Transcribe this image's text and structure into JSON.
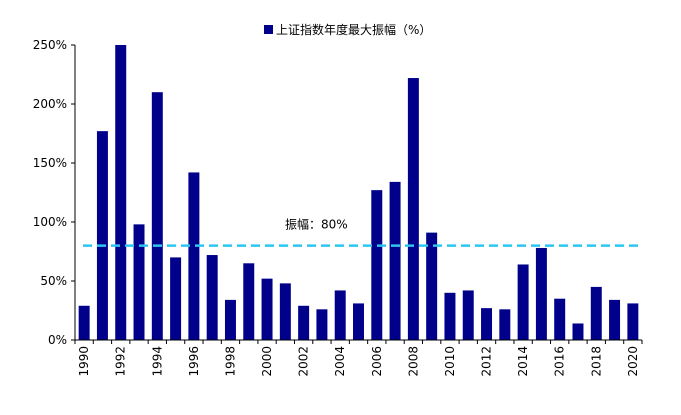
{
  "chart_data": {
    "type": "bar",
    "title": "上证指数年度最大振幅（%）",
    "legend": {
      "label": "上证指数年度最大振幅（%）",
      "position": "top-center"
    },
    "xlabel": "",
    "ylabel": "",
    "ylim": [
      0,
      250
    ],
    "yticks": [
      "0%",
      "50%",
      "100%",
      "150%",
      "200%",
      "250%"
    ],
    "ytick_values": [
      0,
      50,
      100,
      150,
      200,
      250
    ],
    "grid": false,
    "categories": [
      "1990",
      "1991",
      "1992",
      "1993",
      "1994",
      "1995",
      "1996",
      "1997",
      "1998",
      "1999",
      "2000",
      "2001",
      "2002",
      "2003",
      "2004",
      "2005",
      "2006",
      "2007",
      "2008",
      "2009",
      "2010",
      "2011",
      "2012",
      "2013",
      "2014",
      "2015",
      "2016",
      "2017",
      "2018",
      "2019",
      "2020"
    ],
    "xtick_labels": [
      "1990",
      "",
      "1992",
      "",
      "1994",
      "",
      "1996",
      "",
      "1998",
      "",
      "2000",
      "",
      "2002",
      "",
      "2004",
      "",
      "2006",
      "",
      "2008",
      "",
      "2010",
      "",
      "2012",
      "",
      "2014",
      "",
      "2016",
      "",
      "2018",
      "",
      "2020"
    ],
    "values": [
      29,
      177,
      250,
      98,
      210,
      70,
      142,
      72,
      34,
      65,
      52,
      48,
      29,
      26,
      42,
      31,
      127,
      134,
      222,
      91,
      40,
      42,
      27,
      26,
      64,
      78,
      35,
      14,
      45,
      34,
      31
    ],
    "reference_line": {
      "value": 80,
      "label": "振幅：80%"
    },
    "colors": {
      "bar": "#00008B",
      "reference_line": "#2DC6F0",
      "axis": "#000000"
    }
  }
}
